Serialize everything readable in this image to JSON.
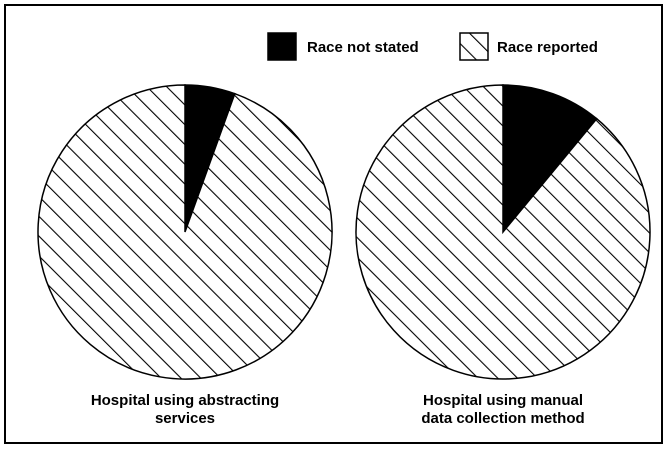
{
  "chart_data": [
    {
      "type": "pie",
      "title": [
        "Hospital using abstracting",
        "services"
      ],
      "categories": [
        "Race not stated",
        "Race reported"
      ],
      "values": [
        5.5,
        94.5
      ],
      "colors": [
        "#000000",
        "#ffffff"
      ],
      "patterns": [
        "solid",
        "hatch"
      ]
    },
    {
      "type": "pie",
      "title": [
        "Hospital using manual",
        "data collection method"
      ],
      "categories": [
        "Race not stated",
        "Race reported"
      ],
      "values": [
        11,
        89
      ],
      "colors": [
        "#000000",
        "#ffffff"
      ],
      "patterns": [
        "solid",
        "hatch"
      ]
    }
  ]
}
